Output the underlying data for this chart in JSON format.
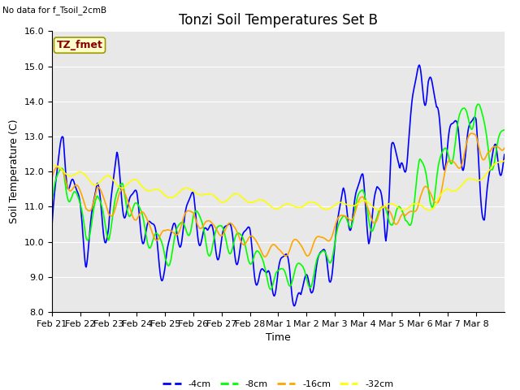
{
  "title": "Tonzi Soil Temperatures Set B",
  "xlabel": "Time",
  "ylabel": "Soil Temperature (C)",
  "no_data_text": "No data for f_Tsoil_2cmB",
  "tz_fmet_label": "TZ_fmet",
  "ylim": [
    8.0,
    16.0
  ],
  "yticks": [
    8.0,
    9.0,
    10.0,
    11.0,
    12.0,
    13.0,
    14.0,
    15.0,
    16.0
  ],
  "xtick_labels": [
    "Feb 21",
    "Feb 22",
    "Feb 23",
    "Feb 24",
    "Feb 25",
    "Feb 26",
    "Feb 27",
    "Feb 28",
    "Mar 1",
    "Mar 2",
    "Mar 3",
    "Mar 4",
    "Mar 5",
    "Mar 6",
    "Mar 7",
    "Mar 8"
  ],
  "colors": {
    "4cm": "#0000FF",
    "8cm": "#00FF00",
    "16cm": "#FFA500",
    "32cm": "#FFFF00"
  },
  "legend_labels": [
    "-4cm",
    "-8cm",
    "-16cm",
    "-32cm"
  ],
  "bg_color": "#E8E8E8",
  "fig_bg": "#FFFFFF",
  "tz_fmet_bg": "#FFFFCC",
  "tz_fmet_border": "#999900",
  "tz_fmet_text_color": "#880000",
  "title_fontsize": 12,
  "label_fontsize": 9,
  "tick_fontsize": 8,
  "linewidth": 1.2,
  "n_days": 16,
  "pts_per_day": 48
}
